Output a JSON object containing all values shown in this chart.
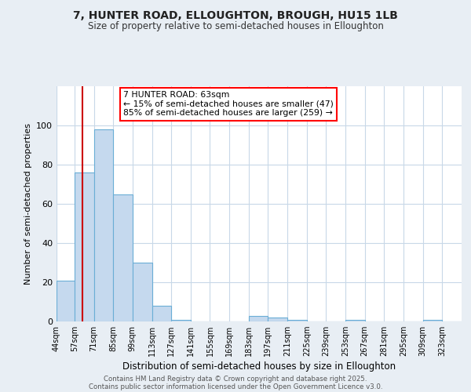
{
  "title1": "7, HUNTER ROAD, ELLOUGHTON, BROUGH, HU15 1LB",
  "title2": "Size of property relative to semi-detached houses in Elloughton",
  "xlabel": "Distribution of semi-detached houses by size in Elloughton",
  "ylabel": "Number of semi-detached properties",
  "bin_labels": [
    "44sqm",
    "57sqm",
    "71sqm",
    "85sqm",
    "99sqm",
    "113sqm",
    "127sqm",
    "141sqm",
    "155sqm",
    "169sqm",
    "183sqm",
    "197sqm",
    "211sqm",
    "225sqm",
    "239sqm",
    "253sqm",
    "267sqm",
    "281sqm",
    "295sqm",
    "309sqm",
    "323sqm"
  ],
  "bar_values": [
    21,
    76,
    98,
    65,
    30,
    8,
    1,
    0,
    0,
    0,
    3,
    2,
    1,
    0,
    0,
    1,
    0,
    0,
    0,
    1,
    0
  ],
  "bar_color": "#c5d9ee",
  "bar_edge_color": "#6aaed6",
  "red_line_x": 63,
  "bin_edges_sqm": [
    44,
    57,
    71,
    85,
    99,
    113,
    127,
    141,
    155,
    169,
    183,
    197,
    211,
    225,
    239,
    253,
    267,
    281,
    295,
    309,
    323,
    337
  ],
  "annotation_title": "7 HUNTER ROAD: 63sqm",
  "annotation_line1": "← 15% of semi-detached houses are smaller (47)",
  "annotation_line2": "85% of semi-detached houses are larger (259) →",
  "footer1": "Contains HM Land Registry data © Crown copyright and database right 2025.",
  "footer2": "Contains public sector information licensed under the Open Government Licence v3.0.",
  "ylim": [
    0,
    120
  ],
  "yticks": [
    0,
    20,
    40,
    60,
    80,
    100
  ],
  "background_color": "#e8eef4",
  "plot_bg_color": "#ffffff",
  "grid_color": "#c8d8e8"
}
